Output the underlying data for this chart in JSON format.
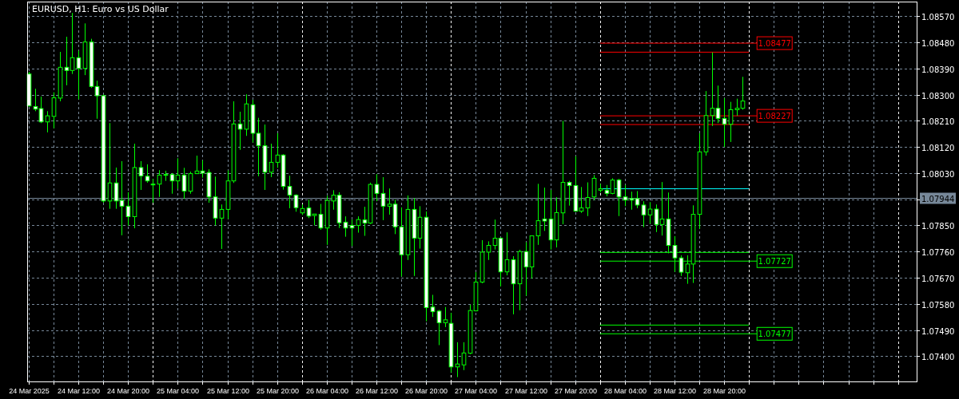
{
  "chart_data": {
    "type": "candlestick",
    "title": "EURUSD, H1:  Euro vs US Dollar",
    "color": "#00ff00",
    "grid": true,
    "legend": "right",
    "x": [
      "2025-03-24T04:00",
      "2025-03-24T05:00",
      "2025-03-24T06:00",
      "2025-03-24T07:00",
      "2025-03-24T08:00",
      "2025-03-24T09:00",
      "2025-03-24T10:00",
      "2025-03-24T11:00",
      "2025-03-24T12:00",
      "2025-03-24T13:00",
      "2025-03-24T14:00",
      "2025-03-24T15:00",
      "2025-03-24T16:00",
      "2025-03-24T17:00",
      "2025-03-24T18:00",
      "2025-03-24T19:00",
      "2025-03-24T20:00",
      "2025-03-24T21:00",
      "2025-03-24T22:00",
      "2025-03-24T23:00",
      "2025-03-25T00:00",
      "2025-03-25T01:00",
      "2025-03-25T02:00",
      "2025-03-25T03:00",
      "2025-03-25T04:00",
      "2025-03-25T05:00",
      "2025-03-25T06:00",
      "2025-03-25T07:00",
      "2025-03-25T08:00",
      "2025-03-25T09:00",
      "2025-03-25T10:00",
      "2025-03-25T11:00",
      "2025-03-25T12:00",
      "2025-03-25T13:00",
      "2025-03-25T14:00",
      "2025-03-25T15:00",
      "2025-03-25T16:00",
      "2025-03-25T17:00",
      "2025-03-25T18:00",
      "2025-03-25T19:00",
      "2025-03-25T20:00",
      "2025-03-25T21:00",
      "2025-03-25T22:00",
      "2025-03-25T23:00",
      "2025-03-26T00:00",
      "2025-03-26T01:00",
      "2025-03-26T02:00",
      "2025-03-26T03:00",
      "2025-03-26T04:00",
      "2025-03-26T05:00",
      "2025-03-26T06:00",
      "2025-03-26T07:00",
      "2025-03-26T08:00",
      "2025-03-26T09:00",
      "2025-03-26T10:00",
      "2025-03-26T11:00",
      "2025-03-26T12:00",
      "2025-03-26T13:00",
      "2025-03-26T14:00",
      "2025-03-26T15:00",
      "2025-03-26T16:00",
      "2025-03-26T17:00",
      "2025-03-26T18:00",
      "2025-03-26T19:00",
      "2025-03-26T20:00",
      "2025-03-26T21:00",
      "2025-03-26T22:00",
      "2025-03-26T23:00",
      "2025-03-27T00:00",
      "2025-03-27T01:00",
      "2025-03-27T02:00",
      "2025-03-27T03:00",
      "2025-03-27T04:00",
      "2025-03-27T05:00",
      "2025-03-27T06:00",
      "2025-03-27T07:00",
      "2025-03-27T08:00",
      "2025-03-27T09:00",
      "2025-03-27T10:00",
      "2025-03-27T11:00",
      "2025-03-27T12:00",
      "2025-03-27T13:00",
      "2025-03-27T14:00",
      "2025-03-27T15:00",
      "2025-03-27T16:00",
      "2025-03-27T17:00",
      "2025-03-27T18:00",
      "2025-03-27T19:00",
      "2025-03-27T20:00",
      "2025-03-27T21:00",
      "2025-03-27T22:00",
      "2025-03-27T23:00",
      "2025-03-28T00:00",
      "2025-03-28T01:00",
      "2025-03-28T02:00",
      "2025-03-28T03:00",
      "2025-03-28T04:00",
      "2025-03-28T05:00",
      "2025-03-28T06:00",
      "2025-03-28T07:00",
      "2025-03-28T08:00",
      "2025-03-28T09:00",
      "2025-03-28T10:00",
      "2025-03-28T11:00",
      "2025-03-28T12:00",
      "2025-03-28T13:00",
      "2025-03-28T14:00",
      "2025-03-28T15:00",
      "2025-03-28T16:00",
      "2025-03-28T17:00",
      "2025-03-28T18:00",
      "2025-03-28T19:00",
      "2025-03-28T20:00",
      "2025-03-28T21:00",
      "2025-03-28T22:00",
      "2025-03-28T23:00"
    ],
    "ohlc": [
      [
        1.08371,
        1.08378,
        1.08259,
        1.08261
      ],
      [
        1.08259,
        1.0832,
        1.08243,
        1.0825
      ],
      [
        1.08252,
        1.08293,
        1.08202,
        1.08206
      ],
      [
        1.08206,
        1.08243,
        1.0817,
        1.08227
      ],
      [
        1.08225,
        1.08308,
        1.08184,
        1.08289
      ],
      [
        1.08288,
        1.08447,
        1.08277,
        1.08394
      ],
      [
        1.08394,
        1.08499,
        1.08332,
        1.08383
      ],
      [
        1.08383,
        1.08581,
        1.08371,
        1.08427
      ],
      [
        1.08427,
        1.08451,
        1.08284,
        1.0839
      ],
      [
        1.0839,
        1.08545,
        1.08367,
        1.08481
      ],
      [
        1.08481,
        1.08492,
        1.08323,
        1.08328
      ],
      [
        1.08328,
        1.08348,
        1.08217,
        1.08296
      ],
      [
        1.08296,
        1.083,
        1.07928,
        1.07934
      ],
      [
        1.07934,
        1.08202,
        1.07907,
        1.07996
      ],
      [
        1.07996,
        1.08049,
        1.07907,
        1.07934
      ],
      [
        1.07936,
        1.08071,
        1.07816,
        1.07916
      ],
      [
        1.07916,
        1.07964,
        1.07849,
        1.0788
      ],
      [
        1.0788,
        1.08131,
        1.0784,
        1.08049
      ],
      [
        1.08049,
        1.08071,
        1.07972,
        1.0802
      ],
      [
        1.08019,
        1.0806,
        1.07997,
        1.08003
      ],
      [
        1.07992,
        1.0801,
        1.07928,
        1.07992
      ],
      [
        1.07992,
        1.0804,
        1.07948,
        1.08023
      ],
      [
        1.08025,
        1.08038,
        1.08003,
        1.08025
      ],
      [
        1.08025,
        1.0803,
        1.07959,
        1.08003
      ],
      [
        1.08003,
        1.08081,
        1.07976,
        1.08023
      ],
      [
        1.08023,
        1.08048,
        1.07941,
        1.07968
      ],
      [
        1.07968,
        1.08035,
        1.07959,
        1.08028
      ],
      [
        1.08028,
        1.0809,
        1.08028,
        1.08037
      ],
      [
        1.08037,
        1.08074,
        1.08014,
        1.0803
      ],
      [
        1.08032,
        1.08043,
        1.07928,
        1.07948
      ],
      [
        1.07948,
        1.08018,
        1.0785,
        1.07875
      ],
      [
        1.07875,
        1.07922,
        1.07769,
        1.07905
      ],
      [
        1.07905,
        1.08039,
        1.07872,
        1.08003
      ],
      [
        1.08003,
        1.08277,
        1.07996,
        1.08199
      ],
      [
        1.08199,
        1.08241,
        1.0811,
        1.08181
      ],
      [
        1.08181,
        1.08301,
        1.08158,
        1.08268
      ],
      [
        1.08265,
        1.08282,
        1.08135,
        1.08167
      ],
      [
        1.08167,
        1.0822,
        1.08019,
        1.08124
      ],
      [
        1.08124,
        1.08197,
        1.07972,
        1.08033
      ],
      [
        1.08033,
        1.08131,
        1.08016,
        1.08067
      ],
      [
        1.08067,
        1.08167,
        1.08048,
        1.08092
      ],
      [
        1.08092,
        1.08095,
        1.07973,
        1.07984
      ],
      [
        1.07984,
        1.08021,
        1.07909,
        1.07954
      ],
      [
        1.07954,
        1.07957,
        1.07897,
        1.07911
      ],
      [
        1.07893,
        1.07922,
        1.07886,
        1.07908
      ],
      [
        1.0791,
        1.07939,
        1.07875,
        1.07882
      ],
      [
        1.07884,
        1.07889,
        1.0785,
        1.07889
      ],
      [
        1.07888,
        1.07924,
        1.07835,
        1.07841
      ],
      [
        1.07841,
        1.07952,
        1.07783,
        1.07936
      ],
      [
        1.07934,
        1.07971,
        1.07904,
        1.07954
      ],
      [
        1.07954,
        1.07964,
        1.07841,
        1.07859
      ],
      [
        1.07861,
        1.07881,
        1.07811,
        1.07841
      ],
      [
        1.0785,
        1.0787,
        1.07779,
        1.07841
      ],
      [
        1.0785,
        1.07881,
        1.07825,
        1.0787
      ],
      [
        1.07869,
        1.07914,
        1.07814,
        1.07858
      ],
      [
        1.07858,
        1.07997,
        1.07855,
        1.07991
      ],
      [
        1.07991,
        1.08026,
        1.07933,
        1.0796
      ],
      [
        1.0796,
        1.08016,
        1.07868,
        1.07916
      ],
      [
        1.07916,
        1.07977,
        1.07887,
        1.07923
      ],
      [
        1.07923,
        1.07939,
        1.0782,
        1.07845
      ],
      [
        1.07845,
        1.07912,
        1.07674,
        1.07749
      ],
      [
        1.07749,
        1.07953,
        1.07731,
        1.07905
      ],
      [
        1.07905,
        1.07944,
        1.07676,
        1.07806
      ],
      [
        1.07806,
        1.07916,
        1.0777,
        1.07878
      ],
      [
        1.07878,
        1.07898,
        1.0752,
        1.07567
      ],
      [
        1.07569,
        1.07611,
        1.07535,
        1.07553
      ],
      [
        1.07555,
        1.07559,
        1.07438,
        1.07515
      ],
      [
        1.07515,
        1.07569,
        1.075,
        1.07525
      ],
      [
        1.07513,
        1.07549,
        1.07344,
        1.07363
      ],
      [
        1.07363,
        1.07448,
        1.07328,
        1.07373
      ],
      [
        1.0737,
        1.07448,
        1.07352,
        1.07411
      ],
      [
        1.0741,
        1.07577,
        1.07407,
        1.07557
      ],
      [
        1.07556,
        1.07689,
        1.07554,
        1.07655
      ],
      [
        1.07655,
        1.07799,
        1.07651,
        1.07758
      ],
      [
        1.07758,
        1.07795,
        1.07731,
        1.07781
      ],
      [
        1.07781,
        1.0787,
        1.07767,
        1.07806
      ],
      [
        1.07806,
        1.07808,
        1.0764,
        1.0769
      ],
      [
        1.0769,
        1.07826,
        1.07678,
        1.07732
      ],
      [
        1.07732,
        1.07744,
        1.07544,
        1.07649
      ],
      [
        1.07649,
        1.07766,
        1.07558,
        1.0776
      ],
      [
        1.0776,
        1.07792,
        1.07608,
        1.07707
      ],
      [
        1.07707,
        1.07815,
        1.07667,
        1.07814
      ],
      [
        1.07814,
        1.07993,
        1.07783,
        1.07866
      ],
      [
        1.07872,
        1.0798,
        1.07831,
        1.07865
      ],
      [
        1.07872,
        1.07972,
        1.07767,
        1.078
      ],
      [
        1.078,
        1.07947,
        1.07774,
        1.07894
      ],
      [
        1.07893,
        1.0821,
        1.07854,
        1.07998
      ],
      [
        1.07998,
        1.08003,
        1.07918,
        1.07987
      ],
      [
        1.07987,
        1.08088,
        1.07897,
        1.07899
      ],
      [
        1.07899,
        1.07982,
        1.07893,
        1.0791
      ],
      [
        1.0791,
        1.07998,
        1.07882,
        1.07946
      ],
      [
        1.07948,
        1.08023,
        1.07937,
        1.08012
      ],
      [
        1.07971,
        1.07993,
        1.07963,
        1.07976
      ],
      [
        1.07971,
        1.07989,
        1.0795,
        1.0796
      ],
      [
        1.0796,
        1.08012,
        1.07957,
        1.08006
      ],
      [
        1.08006,
        1.0801,
        1.07882,
        1.07948
      ],
      [
        1.07948,
        1.07989,
        1.07916,
        1.07937
      ],
      [
        1.07942,
        1.07966,
        1.07904,
        1.07937
      ],
      [
        1.07942,
        1.07968,
        1.07909,
        1.0792
      ],
      [
        1.0792,
        1.07933,
        1.07844,
        1.07886
      ],
      [
        1.07886,
        1.0793,
        1.07856,
        1.07906
      ],
      [
        1.07906,
        1.07922,
        1.07827,
        1.07853
      ],
      [
        1.07853,
        1.07999,
        1.07815,
        1.07872
      ],
      [
        1.07872,
        1.07963,
        1.07754,
        1.07781
      ],
      [
        1.07781,
        1.07813,
        1.0769,
        1.07738
      ],
      [
        1.07738,
        1.07747,
        1.07676,
        1.07689
      ],
      [
        1.07687,
        1.07747,
        1.07649,
        1.07717
      ],
      [
        1.07717,
        1.07919,
        1.07652,
        1.07888
      ],
      [
        1.07888,
        1.08167,
        1.07838,
        1.08103
      ],
      [
        1.08103,
        1.08312,
        1.0809,
        1.08228
      ],
      [
        1.08228,
        1.08445,
        1.08192,
        1.08253
      ],
      [
        1.08253,
        1.08331,
        1.08202,
        1.08218
      ],
      [
        1.08218,
        1.08288,
        1.0812,
        1.08198
      ],
      [
        1.08198,
        1.08275,
        1.08137,
        1.08248
      ],
      [
        1.08248,
        1.08286,
        1.08227,
        1.08253
      ],
      [
        1.08253,
        1.08361,
        1.08248,
        1.08278
      ]
    ],
    "series": [
      {
        "type": "line",
        "name": "1.08477",
        "color": "#ff0000",
        "x": [
          "2025-03-28T00:00",
          "2025-03-29T00:00"
        ],
        "values": [
          1.08477,
          1.08477
        ]
      },
      {
        "type": "line",
        "color": "#ff0000",
        "x": [
          "2025-03-28T00:00",
          "2025-03-29T00:00"
        ],
        "values": [
          1.08446,
          1.08446
        ]
      },
      {
        "type": "line",
        "name": "1.08227",
        "color": "#ff0000",
        "x": [
          "2025-03-28T00:00",
          "2025-03-29T00:00"
        ],
        "values": [
          1.08227,
          1.08227
        ]
      },
      {
        "type": "line",
        "color": "#ff0000",
        "x": [
          "2025-03-28T00:00",
          "2025-03-29T00:00"
        ],
        "values": [
          1.08197,
          1.08197
        ]
      },
      {
        "type": "line",
        "name": "1.07727",
        "color": "#00ff00",
        "x": [
          "2025-03-28T00:00",
          "2025-03-29T00:00"
        ],
        "values": [
          1.07727,
          1.07727
        ]
      },
      {
        "type": "line",
        "color": "#00ff00",
        "x": [
          "2025-03-28T00:00",
          "2025-03-29T00:00"
        ],
        "values": [
          1.07757,
          1.07757
        ]
      },
      {
        "type": "line",
        "name": "1.07477",
        "color": "#00ff00",
        "x": [
          "2025-03-28T00:00",
          "2025-03-29T00:00"
        ],
        "values": [
          1.07477,
          1.07477
        ]
      },
      {
        "type": "line",
        "color": "#00ff00",
        "x": [
          "2025-03-28T00:00",
          "2025-03-29T00:00"
        ],
        "values": [
          1.07507,
          1.07507
        ]
      },
      {
        "type": "line",
        "color": "#00ffff",
        "x": [
          "2025-03-28T00:00",
          "2025-03-29T00:00"
        ],
        "values": [
          1.07976,
          1.07976
        ]
      }
    ],
    "ref_lines": [
      {
        "axis": "y",
        "value": 1.07944,
        "label": "1.07944",
        "color": "#778899"
      }
    ],
    "xlim": [
      "2025-03-24T03:45",
      "2025-03-30T03:00"
    ],
    "xticks": [
      {
        "value": "2025-03-24T04:00",
        "label": "24 Mar 2025"
      },
      {
        "value": "2025-03-24T08:00",
        "label": null
      },
      {
        "value": "2025-03-24T12:00",
        "label": "24 Mar 12:00"
      },
      {
        "value": "2025-03-24T16:00",
        "label": null
      },
      {
        "value": "2025-03-24T20:00",
        "label": "24 Mar 20:00"
      },
      {
        "value": "2025-03-25T00:00",
        "label": null
      },
      {
        "value": "2025-03-25T04:00",
        "label": "25 Mar 04:00"
      },
      {
        "value": "2025-03-25T08:00",
        "label": null
      },
      {
        "value": "2025-03-25T12:00",
        "label": "25 Mar 12:00"
      },
      {
        "value": "2025-03-25T16:00",
        "label": null
      },
      {
        "value": "2025-03-25T20:00",
        "label": "25 Mar 20:00"
      },
      {
        "value": "2025-03-26T00:00",
        "label": null
      },
      {
        "value": "2025-03-26T04:00",
        "label": "26 Mar 04:00"
      },
      {
        "value": "2025-03-26T08:00",
        "label": null
      },
      {
        "value": "2025-03-26T12:00",
        "label": "26 Mar 12:00"
      },
      {
        "value": "2025-03-26T16:00",
        "label": null
      },
      {
        "value": "2025-03-26T20:00",
        "label": "26 Mar 20:00"
      },
      {
        "value": "2025-03-27T00:00",
        "label": null
      },
      {
        "value": "2025-03-27T04:00",
        "label": "27 Mar 04:00"
      },
      {
        "value": "2025-03-27T08:00",
        "label": null
      },
      {
        "value": "2025-03-27T12:00",
        "label": "27 Mar 12:00"
      },
      {
        "value": "2025-03-27T16:00",
        "label": null
      },
      {
        "value": "2025-03-27T20:00",
        "label": "27 Mar 20:00"
      },
      {
        "value": "2025-03-28T00:00",
        "label": null
      },
      {
        "value": "2025-03-28T04:00",
        "label": "28 Mar 04:00"
      },
      {
        "value": "2025-03-28T08:00",
        "label": null
      },
      {
        "value": "2025-03-28T12:00",
        "label": "28 Mar 12:00"
      },
      {
        "value": "2025-03-28T16:00",
        "label": null
      },
      {
        "value": "2025-03-28T20:00",
        "label": "28 Mar 20:00"
      },
      {
        "value": "2025-03-29T00:00",
        "label": null
      },
      {
        "value": "2025-03-29T04:00",
        "label": null
      },
      {
        "value": "2025-03-29T08:00",
        "label": null
      },
      {
        "value": "2025-03-29T12:00",
        "label": null
      },
      {
        "value": "2025-03-29T16:00",
        "label": null
      },
      {
        "value": "2025-03-29T20:00",
        "label": null
      },
      {
        "value": "2025-03-30T00:00",
        "label": null
      }
    ],
    "ylim": [
      1.07313,
      1.0862
    ],
    "yticks": [
      {
        "value": 1.0857,
        "label": "1.08570"
      },
      {
        "value": 1.0848,
        "label": "1.08480"
      },
      {
        "value": 1.0839,
        "label": "1.08390"
      },
      {
        "value": 1.083,
        "label": "1.08300"
      },
      {
        "value": 1.0821,
        "label": "1.08210"
      },
      {
        "value": 1.0812,
        "label": "1.08120"
      },
      {
        "value": 1.0803,
        "label": "1.08030"
      },
      {
        "value": 1.0794,
        "label": null
      },
      {
        "value": 1.0785,
        "label": "1.07850"
      },
      {
        "value": 1.0776,
        "label": "1.07760"
      },
      {
        "value": 1.0767,
        "label": "1.07670"
      },
      {
        "value": 1.0758,
        "label": "1.07580"
      },
      {
        "value": 1.0749,
        "label": "1.07490"
      },
      {
        "value": 1.074,
        "label": "1.07400"
      }
    ]
  }
}
